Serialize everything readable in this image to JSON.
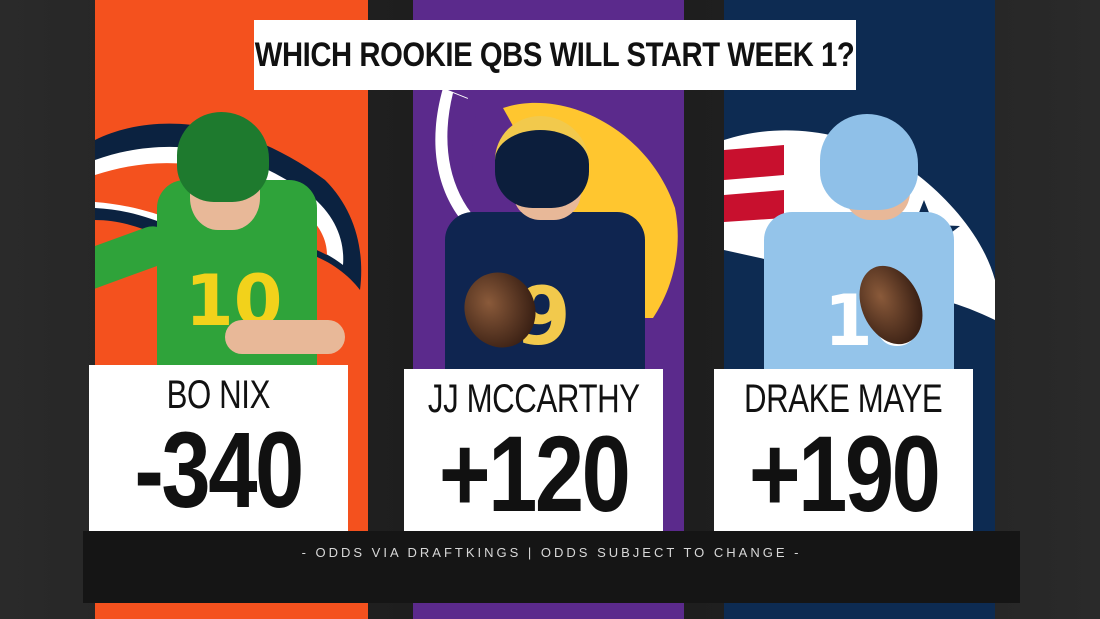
{
  "title": "WHICH ROOKIE QBS WILL START WEEK 1?",
  "players": [
    {
      "name": "BO NIX",
      "odds": "-340",
      "jersey_number": "10",
      "team_logo_icon": "broncos-logo-icon",
      "panel_color": "#f4511e",
      "helmet_color": "#1e7a2e",
      "jersey_color": "#2fa33a"
    },
    {
      "name": "JJ MCCARTHY",
      "odds": "+120",
      "jersey_number": "9",
      "team_logo_icon": "vikings-logo-icon",
      "panel_color": "#5b2a8c",
      "helmet_color": "#0c1e3c",
      "jersey_color": "#0f2550"
    },
    {
      "name": "DRAKE MAYE",
      "odds": "+190",
      "jersey_number": "10",
      "team_logo_icon": "patriots-logo-icon",
      "panel_color": "#0d2b52",
      "helmet_color": "#8fc0e8",
      "jersey_color": "#94c4ea"
    }
  ],
  "footer": "- ODDS VIA DRAFTKINGS | ODDS SUBJECT TO CHANGE -"
}
